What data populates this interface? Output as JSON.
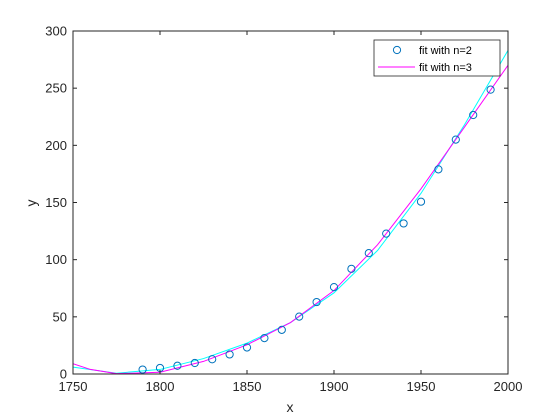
{
  "chart_data": {
    "type": "line",
    "xlabel": "x",
    "ylabel": "y",
    "xlim": [
      1750,
      2000
    ],
    "ylim": [
      0,
      300
    ],
    "xticks": [
      1750,
      1800,
      1850,
      1900,
      1950,
      2000
    ],
    "yticks": [
      0,
      50,
      100,
      150,
      200,
      250,
      300
    ],
    "grid": false,
    "legend_location": "top-right",
    "colors": {
      "markers": "#0072BD",
      "fit_n2": "#00FFFF",
      "fit_n3": "#FF00FF",
      "axes": "#262626"
    },
    "series": [
      {
        "name": "fit with n=2",
        "kind": "markers",
        "marker": "circle",
        "x": [
          1790,
          1800,
          1810,
          1820,
          1830,
          1840,
          1850,
          1860,
          1870,
          1880,
          1890,
          1900,
          1910,
          1920,
          1930,
          1940,
          1950,
          1960,
          1970,
          1980,
          1990
        ],
        "y": [
          3.9,
          5.3,
          7.2,
          9.6,
          12.9,
          17.1,
          23.2,
          31.4,
          38.6,
          50.2,
          62.9,
          76.0,
          92.0,
          105.7,
          122.8,
          131.7,
          150.7,
          179.0,
          205.0,
          226.5,
          248.7
        ]
      },
      {
        "name": "",
        "kind": "line",
        "x": [
          1750,
          1775,
          1800,
          1825,
          1850,
          1875,
          1900,
          1925,
          1950,
          1975,
          2000
        ],
        "y": [
          6.0,
          0.7,
          4.0,
          13.5,
          27.0,
          45.0,
          71.0,
          108.0,
          158.0,
          218.0,
          283.0
        ]
      },
      {
        "name": "fit with n=3",
        "kind": "line",
        "x": [
          1750,
          1760,
          1775,
          1800,
          1825,
          1850,
          1875,
          1900,
          1925,
          1950,
          1975,
          2000
        ],
        "y": [
          9.0,
          4.0,
          0.3,
          1.5,
          11.0,
          25.5,
          45.0,
          73.0,
          113.0,
          162.0,
          216.0,
          270.0
        ]
      }
    ]
  }
}
